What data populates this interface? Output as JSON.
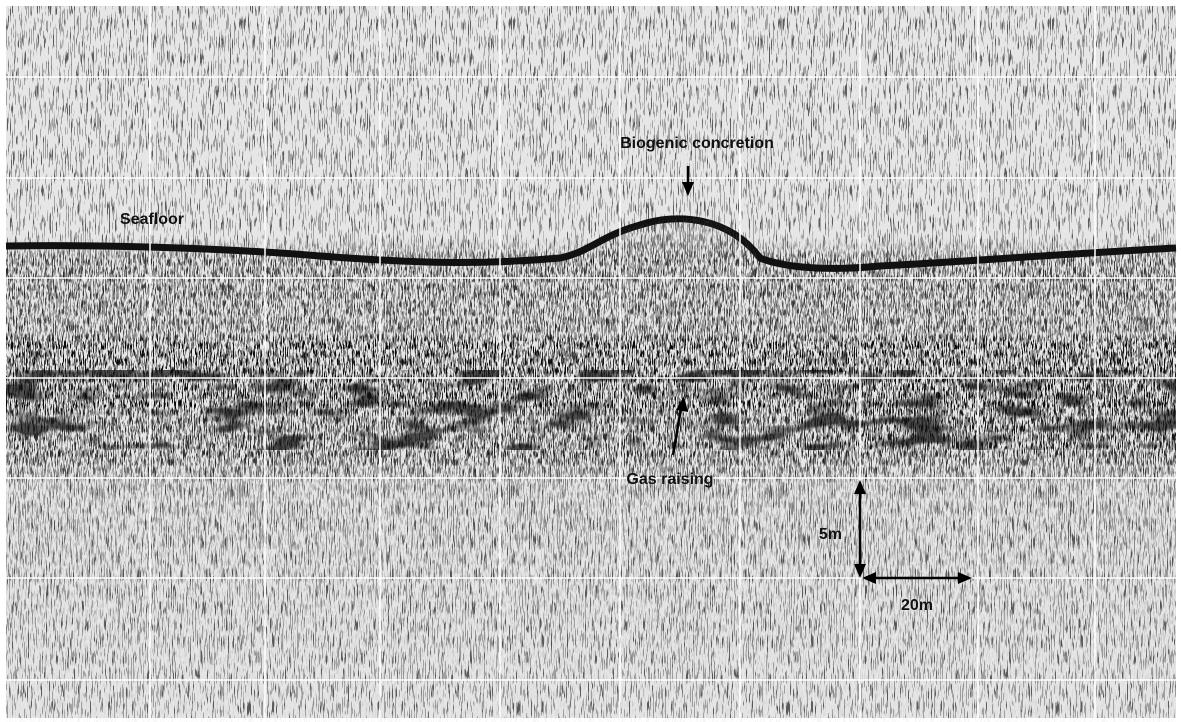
{
  "labels": {
    "seafloor": "Seafloor",
    "biogenic": "Biogenic concretion",
    "gas": "Gas raising",
    "scale_vertical": "5m",
    "scale_horizontal": "20m"
  }
}
